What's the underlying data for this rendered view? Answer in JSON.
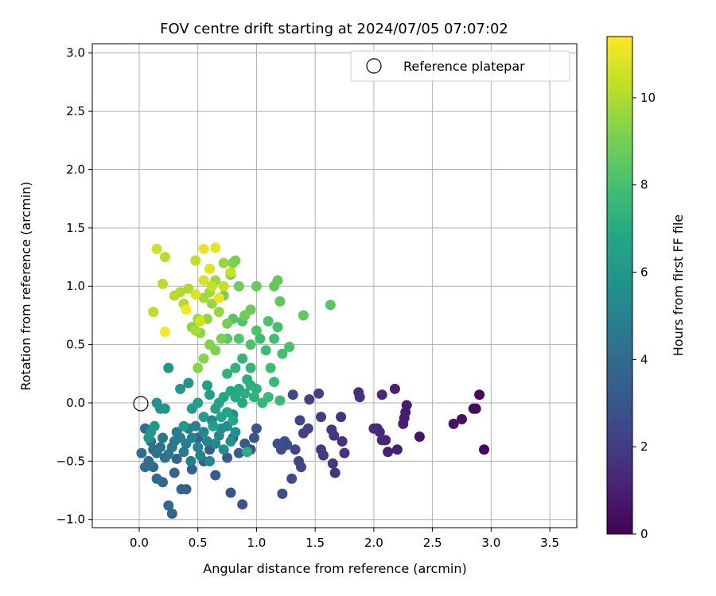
{
  "chart_data": {
    "type": "scatter",
    "title": "FOV centre drift starting at 2024/07/05 07:07:02",
    "xlabel": "Angular distance from reference (arcmin)",
    "ylabel": "Rotation from reference (arcmin)",
    "xlim": [
      -0.4,
      3.73
    ],
    "ylim": [
      -1.07,
      3.08
    ],
    "xticks": [
      "0.0",
      "0.5",
      "1.0",
      "1.5",
      "2.0",
      "2.5",
      "3.0",
      "3.5"
    ],
    "yticks": [
      "−1.0",
      "−0.5",
      "0.0",
      "0.5",
      "1.0",
      "1.5",
      "2.0",
      "2.5",
      "3.0"
    ],
    "grid": true,
    "legend": {
      "placement": "top-right",
      "entries": [
        "Reference platepar"
      ]
    },
    "reference_point": {
      "x": 0.0,
      "y": 0.0
    },
    "colorbar": {
      "label": "Hours from first FF file",
      "colormap": "viridis",
      "range": [
        0,
        11.4
      ],
      "ticks": [
        "0",
        "2",
        "4",
        "6",
        "8",
        "10"
      ]
    },
    "points": [
      [
        2.94,
        -0.4,
        0.1
      ],
      [
        2.9,
        0.07,
        0.2
      ],
      [
        2.87,
        -0.05,
        0.3
      ],
      [
        2.85,
        -0.05,
        0.35
      ],
      [
        2.75,
        -0.14,
        0.45
      ],
      [
        2.68,
        -0.18,
        0.55
      ],
      [
        2.39,
        -0.29,
        0.7
      ],
      [
        2.28,
        -0.02,
        0.8
      ],
      [
        2.27,
        -0.08,
        0.85
      ],
      [
        2.26,
        -0.13,
        0.9
      ],
      [
        2.25,
        -0.18,
        0.95
      ],
      [
        2.2,
        -0.4,
        1.0
      ],
      [
        2.18,
        0.12,
        1.05
      ],
      [
        2.12,
        -0.42,
        1.1
      ],
      [
        2.1,
        -0.32,
        1.15
      ],
      [
        2.07,
        -0.32,
        1.2
      ],
      [
        2.05,
        -0.25,
        1.25
      ],
      [
        2.03,
        -0.22,
        1.3
      ],
      [
        2.0,
        -0.22,
        1.35
      ],
      [
        2.07,
        0.07,
        1.4
      ],
      [
        1.87,
        0.09,
        1.5
      ],
      [
        1.88,
        0.05,
        1.55
      ],
      [
        1.75,
        -0.43,
        1.6
      ],
      [
        1.73,
        -0.33,
        1.65
      ],
      [
        1.72,
        -0.12,
        1.7
      ],
      [
        1.67,
        -0.6,
        1.75
      ],
      [
        1.66,
        -0.28,
        1.8
      ],
      [
        1.65,
        -0.52,
        1.85
      ],
      [
        1.64,
        -0.23,
        1.9
      ],
      [
        1.57,
        -0.45,
        1.95
      ],
      [
        1.55,
        -0.4,
        2.0
      ],
      [
        1.55,
        -0.12,
        2.05
      ],
      [
        1.53,
        0.08,
        2.1
      ],
      [
        1.45,
        0.03,
        2.15
      ],
      [
        1.44,
        -0.22,
        2.2
      ],
      [
        1.4,
        -0.26,
        2.25
      ],
      [
        1.38,
        -0.55,
        2.3
      ],
      [
        1.37,
        -0.15,
        2.35
      ],
      [
        1.36,
        -0.5,
        2.4
      ],
      [
        1.33,
        -0.4,
        2.45
      ],
      [
        1.31,
        0.07,
        2.5
      ],
      [
        1.3,
        -0.65,
        2.55
      ],
      [
        1.26,
        -0.36,
        2.6
      ],
      [
        1.24,
        -0.33,
        2.65
      ],
      [
        1.22,
        -0.78,
        2.7
      ],
      [
        1.21,
        -0.4,
        2.75
      ],
      [
        1.18,
        -0.35,
        2.8
      ],
      [
        0.88,
        -0.87,
        2.85
      ],
      [
        0.78,
        -0.77,
        2.9
      ],
      [
        1.0,
        -0.22,
        2.95
      ],
      [
        0.98,
        -0.3,
        3.0
      ],
      [
        0.95,
        -0.4,
        3.05
      ],
      [
        0.9,
        -0.35,
        3.1
      ],
      [
        0.85,
        -0.43,
        3.15
      ],
      [
        0.8,
        -0.3,
        3.2
      ],
      [
        0.75,
        -0.47,
        3.25
      ],
      [
        0.65,
        -0.62,
        3.3
      ],
      [
        0.6,
        -0.4,
        3.35
      ],
      [
        0.55,
        -0.5,
        3.4
      ],
      [
        0.5,
        -0.3,
        3.45
      ],
      [
        0.45,
        -0.57,
        3.5
      ],
      [
        0.4,
        -0.74,
        3.55
      ],
      [
        0.36,
        -0.74,
        3.6
      ],
      [
        0.32,
        -0.48,
        3.65
      ],
      [
        0.3,
        -0.6,
        3.7
      ],
      [
        0.28,
        -0.95,
        3.75
      ],
      [
        0.25,
        -0.88,
        3.8
      ],
      [
        0.2,
        -0.68,
        3.85
      ],
      [
        0.15,
        -0.65,
        3.9
      ],
      [
        0.12,
        -0.55,
        3.95
      ],
      [
        0.08,
        -0.5,
        4.0
      ],
      [
        0.05,
        -0.55,
        4.05
      ],
      [
        0.02,
        -0.43,
        4.1
      ],
      [
        0.05,
        -0.22,
        4.15
      ],
      [
        0.1,
        -0.33,
        4.2
      ],
      [
        0.12,
        -0.4,
        4.25
      ],
      [
        0.15,
        -0.43,
        4.3
      ],
      [
        0.18,
        -0.38,
        4.35
      ],
      [
        0.2,
        -0.3,
        4.4
      ],
      [
        0.22,
        -0.47,
        4.45
      ],
      [
        0.25,
        -0.44,
        4.5
      ],
      [
        0.28,
        -0.38,
        4.55
      ],
      [
        0.3,
        -0.33,
        4.6
      ],
      [
        0.32,
        -0.25,
        4.65
      ],
      [
        0.35,
        -0.3,
        4.7
      ],
      [
        0.38,
        -0.42,
        4.75
      ],
      [
        0.4,
        -0.35,
        4.8
      ],
      [
        0.42,
        -0.22,
        4.85
      ],
      [
        0.44,
        -0.5,
        4.9
      ],
      [
        0.45,
        -0.3,
        4.95
      ],
      [
        0.48,
        -0.2,
        5.0
      ],
      [
        0.5,
        -0.38,
        5.05
      ],
      [
        0.52,
        -0.45,
        5.1
      ],
      [
        0.55,
        -0.25,
        5.15
      ],
      [
        0.58,
        -0.33,
        5.2
      ],
      [
        0.6,
        -0.5,
        5.25
      ],
      [
        0.62,
        -0.15,
        5.3
      ],
      [
        0.65,
        -0.35,
        5.35
      ],
      [
        0.68,
        -0.28,
        5.4
      ],
      [
        0.7,
        -0.22,
        5.45
      ],
      [
        0.72,
        -0.4,
        5.5
      ],
      [
        0.75,
        -0.2,
        5.55
      ],
      [
        0.78,
        -0.33,
        5.6
      ],
      [
        0.8,
        -0.1,
        5.65
      ],
      [
        0.82,
        -0.25,
        5.7
      ],
      [
        0.15,
        0.0,
        5.75
      ],
      [
        0.18,
        -0.05,
        5.8
      ],
      [
        0.22,
        -0.05,
        5.85
      ],
      [
        0.25,
        0.3,
        5.9
      ],
      [
        0.35,
        0.12,
        5.95
      ],
      [
        0.42,
        0.17,
        6.0
      ],
      [
        0.08,
        -0.3,
        6.05
      ],
      [
        0.1,
        -0.25,
        6.1
      ],
      [
        0.13,
        -0.2,
        6.15
      ],
      [
        0.38,
        -0.2,
        6.2
      ],
      [
        0.45,
        -0.05,
        6.25
      ],
      [
        0.5,
        0.0,
        6.3
      ],
      [
        0.55,
        -0.12,
        6.35
      ],
      [
        0.58,
        0.15,
        6.4
      ],
      [
        0.6,
        0.07,
        6.45
      ],
      [
        0.63,
        -0.2,
        6.5
      ],
      [
        0.65,
        -0.05,
        6.55
      ],
      [
        0.68,
        0.0,
        6.6
      ],
      [
        0.7,
        -0.12,
        6.65
      ],
      [
        0.72,
        0.05,
        6.7
      ],
      [
        0.75,
        -0.08,
        6.75
      ],
      [
        0.78,
        0.1,
        6.8
      ],
      [
        0.8,
        -0.15,
        6.85
      ],
      [
        0.82,
        0.05,
        6.9
      ],
      [
        0.85,
        0.12,
        6.95
      ],
      [
        0.88,
        0.0,
        7.0
      ],
      [
        0.9,
        0.08,
        7.05
      ],
      [
        0.92,
        -0.42,
        7.1
      ],
      [
        0.92,
        0.2,
        7.15
      ],
      [
        0.95,
        0.15,
        7.2
      ],
      [
        0.98,
        0.05,
        7.25
      ],
      [
        1.0,
        0.12,
        7.3
      ],
      [
        0.75,
        0.25,
        7.35
      ],
      [
        0.82,
        0.3,
        7.4
      ],
      [
        0.88,
        0.38,
        7.45
      ],
      [
        0.95,
        0.3,
        7.5
      ],
      [
        1.05,
        0.0,
        7.55
      ],
      [
        1.1,
        0.05,
        7.6
      ],
      [
        1.15,
        0.18,
        7.65
      ],
      [
        1.2,
        0.02,
        7.7
      ],
      [
        1.12,
        0.3,
        7.75
      ],
      [
        1.08,
        0.45,
        7.8
      ],
      [
        1.03,
        0.55,
        7.85
      ],
      [
        1.15,
        0.55,
        7.9
      ],
      [
        1.22,
        0.42,
        7.95
      ],
      [
        1.18,
        0.65,
        8.0
      ],
      [
        1.28,
        0.48,
        8.05
      ],
      [
        1.1,
        0.7,
        8.1
      ],
      [
        1.0,
        0.62,
        8.15
      ],
      [
        0.95,
        0.5,
        8.2
      ],
      [
        0.88,
        0.7,
        8.25
      ],
      [
        0.85,
        0.55,
        8.3
      ],
      [
        0.8,
        0.72,
        8.35
      ],
      [
        0.75,
        0.55,
        8.4
      ],
      [
        1.63,
        0.84,
        8.45
      ],
      [
        1.4,
        0.75,
        8.5
      ],
      [
        1.2,
        0.87,
        8.55
      ],
      [
        1.15,
        1.0,
        8.6
      ],
      [
        1.18,
        1.05,
        8.65
      ],
      [
        1.0,
        1.0,
        8.7
      ],
      [
        0.95,
        0.8,
        8.75
      ],
      [
        0.9,
        0.75,
        8.8
      ],
      [
        0.85,
        1.0,
        8.85
      ],
      [
        0.78,
        1.1,
        8.9
      ],
      [
        0.72,
        0.92,
        8.95
      ],
      [
        0.75,
        0.68,
        9.0
      ],
      [
        0.8,
        1.2,
        9.05
      ],
      [
        0.82,
        1.22,
        9.1
      ],
      [
        0.7,
        0.55,
        9.15
      ],
      [
        0.65,
        0.45,
        9.2
      ],
      [
        0.6,
        0.5,
        9.25
      ],
      [
        0.55,
        0.38,
        9.3
      ],
      [
        0.5,
        0.3,
        9.35
      ],
      [
        0.45,
        0.65,
        9.4
      ],
      [
        0.52,
        0.6,
        9.45
      ],
      [
        0.58,
        0.72,
        9.5
      ],
      [
        0.62,
        0.85,
        9.55
      ],
      [
        0.68,
        0.78,
        9.6
      ],
      [
        0.72,
        1.2,
        9.65
      ],
      [
        0.65,
        1.05,
        9.7
      ],
      [
        0.6,
        0.95,
        9.75
      ],
      [
        0.55,
        0.9,
        9.8
      ],
      [
        0.5,
        0.72,
        9.85
      ],
      [
        0.48,
        0.62,
        9.9
      ],
      [
        0.42,
        0.98,
        9.95
      ],
      [
        0.38,
        0.85,
        10.0
      ],
      [
        0.35,
        0.95,
        10.05
      ],
      [
        0.3,
        0.92,
        10.1
      ],
      [
        0.22,
        1.25,
        10.15
      ],
      [
        0.2,
        1.02,
        10.2
      ],
      [
        0.12,
        0.78,
        10.25
      ],
      [
        0.48,
        1.22,
        10.3
      ],
      [
        0.62,
        1.0,
        10.35
      ],
      [
        0.72,
        1.0,
        10.4
      ],
      [
        0.78,
        1.12,
        10.45
      ],
      [
        0.15,
        1.32,
        10.55
      ],
      [
        0.52,
        0.7,
        10.6
      ],
      [
        0.55,
        1.05,
        10.7
      ],
      [
        0.48,
        0.93,
        10.8
      ],
      [
        0.6,
        1.15,
        10.9
      ],
      [
        0.65,
        1.33,
        11.0
      ],
      [
        0.55,
        1.32,
        11.05
      ],
      [
        0.68,
        0.9,
        11.1
      ],
      [
        0.4,
        0.8,
        11.2
      ],
      [
        0.22,
        0.61,
        11.3
      ]
    ]
  }
}
